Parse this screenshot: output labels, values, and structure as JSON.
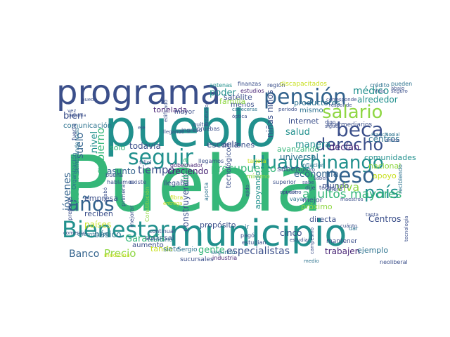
{
  "palette": {
    "navy": "#3b4f8a",
    "blue": "#33638d",
    "teal": "#21908d",
    "green": "#35b779",
    "lime": "#8fd744",
    "yellow": "#c8e020",
    "purple": "#482475",
    "steel": "#2c728e"
  },
  "words": [
    {
      "text": "Puebla",
      "color": "green"
    },
    {
      "text": "pueblo",
      "color": "teal"
    },
    {
      "text": "municipio",
      "color": "teal"
    },
    {
      "text": "programa",
      "color": "navy"
    },
    {
      "text": "Huauchinango",
      "color": "teal"
    },
    {
      "text": "pensión",
      "color": "blue"
    },
    {
      "text": "Bienestar",
      "color": "teal"
    },
    {
      "text": "salario",
      "color": "lime"
    },
    {
      "text": "beca",
      "color": "navy"
    },
    {
      "text": "seguir",
      "color": "teal"
    },
    {
      "text": "derecho",
      "color": "navy"
    },
    {
      "text": "peso",
      "color": "blue"
    },
    {
      "text": "años",
      "color": "blue"
    },
    {
      "text": "país",
      "color": "teal"
    },
    {
      "text": "adultos mayores",
      "color": "green"
    },
    {
      "text": "presupuesto",
      "color": "green"
    },
    {
      "text": "Banco",
      "color": "blue"
    },
    {
      "text": "Precio",
      "color": "lime"
    },
    {
      "text": "poder",
      "color": "teal"
    },
    {
      "text": "gobierno",
      "color": "green"
    },
    {
      "text": "hospitales",
      "color": "green"
    },
    {
      "text": "jóvenes",
      "color": "blue"
    },
    {
      "text": "médico",
      "color": "teal"
    },
    {
      "text": "bien",
      "color": "navy"
    },
    {
      "text": "tiempo",
      "color": "navy"
    },
    {
      "text": "viva",
      "color": "lime"
    },
    {
      "text": "salud",
      "color": "teal"
    },
    {
      "text": "suelo",
      "color": "blue"
    },
    {
      "text": "nivel",
      "color": "teal"
    },
    {
      "text": "escuela",
      "color": "navy"
    },
    {
      "text": "todavía",
      "color": "navy"
    },
    {
      "text": "tonelada",
      "color": "purple"
    },
    {
      "text": "economía",
      "color": "blue"
    },
    {
      "text": "mundo",
      "color": "navy"
    },
    {
      "text": "Garantía",
      "color": "green"
    },
    {
      "text": "especialistas",
      "color": "navy"
    },
    {
      "text": "satélite",
      "color": "navy"
    },
    {
      "text": "niñas niños",
      "color": "navy"
    },
    {
      "text": "construyendo",
      "color": "navy"
    },
    {
      "text": "creciendo",
      "color": "purple"
    },
    {
      "text": "pública",
      "color": "green"
    },
    {
      "text": "apoyando",
      "color": "teal"
    },
    {
      "text": "manera",
      "color": "teal"
    },
    {
      "text": "decían",
      "color": "purple"
    },
    {
      "text": "alrededor",
      "color": "teal"
    },
    {
      "text": "centros",
      "color": "steel"
    },
    {
      "text": "apoyo",
      "color": "yellow"
    },
    {
      "text": "universal",
      "color": "steel"
    },
    {
      "text": "internet",
      "color": "navy"
    },
    {
      "text": "comunidades",
      "color": "teal"
    },
    {
      "text": "avanzando",
      "color": "green"
    },
    {
      "text": "asunto",
      "color": "blue"
    },
    {
      "text": "sólo",
      "color": "green"
    },
    {
      "text": "empresa",
      "color": "navy"
    },
    {
      "text": "reciben",
      "color": "navy"
    },
    {
      "text": "básico",
      "color": "steel"
    },
    {
      "text": "aumento",
      "color": "navy"
    },
    {
      "text": "países",
      "color": "yellow"
    },
    {
      "text": "comunicación",
      "color": "steel"
    },
    {
      "text": "propósito",
      "color": "navy"
    },
    {
      "text": "gente",
      "color": "green"
    },
    {
      "text": "tanda",
      "color": "yellow"
    },
    {
      "text": "trabajen",
      "color": "purple"
    },
    {
      "text": "ejemplo",
      "color": "steel"
    },
    {
      "text": "cinco",
      "color": "navy"
    },
    {
      "text": "Centros",
      "color": "navy"
    },
    {
      "text": "próximo",
      "color": "lime"
    },
    {
      "text": "mejor",
      "color": "navy"
    },
    {
      "text": "saben",
      "color": "navy"
    },
    {
      "text": "productores",
      "color": "steel"
    },
    {
      "text": "nacional",
      "color": "lime"
    },
    {
      "text": "directa",
      "color": "navy"
    },
    {
      "text": "mismo",
      "color": "steel"
    },
    {
      "text": "menos",
      "color": "navy"
    },
    {
      "text": "familia",
      "color": "lime"
    },
    {
      "text": "millones",
      "color": "navy"
    },
    {
      "text": "tecnológico",
      "color": "navy"
    },
    {
      "text": "siete",
      "color": "steel"
    },
    {
      "text": "Sergio",
      "color": "steel"
    },
    {
      "text": "llegaba",
      "color": "navy"
    },
    {
      "text": "sucursal",
      "color": "navy"
    },
    {
      "text": "sucursales",
      "color": "navy"
    },
    {
      "text": "gobernador",
      "color": "purple"
    },
    {
      "text": "intermediarios",
      "color": "navy"
    },
    {
      "text": "mantener",
      "color": "navy"
    },
    {
      "text": "región",
      "color": "navy"
    },
    {
      "text": "estudios",
      "color": "purple"
    },
    {
      "text": "finanzas",
      "color": "navy"
    },
    {
      "text": "antenas",
      "color": "teal"
    },
    {
      "text": "discapacitados",
      "color": "yellow"
    },
    {
      "text": "crédito",
      "color": "steel"
    },
    {
      "text": "pueden",
      "color": "steel"
    },
    {
      "text": "abajo",
      "color": "navy"
    },
    {
      "text": "industria",
      "color": "purple"
    },
    {
      "text": "segundo",
      "color": "steel"
    },
    {
      "text": "medio",
      "color": "steel"
    },
    {
      "text": "neoliberal",
      "color": "navy"
    },
    {
      "text": "Vida",
      "color": "navy"
    },
    {
      "text": "Sembrando Vida",
      "color": "steel"
    },
    {
      "text": "Organización",
      "color": "steel"
    },
    {
      "text": "hablamos",
      "color": "navy"
    },
    {
      "text": "existe",
      "color": "navy"
    },
    {
      "text": "mayor",
      "color": "navy"
    },
    {
      "text": "pruebas",
      "color": "navy"
    },
    {
      "text": "quitar",
      "color": "navy"
    },
    {
      "text": "mínimo",
      "color": "lime"
    },
    {
      "text": "frijol",
      "color": "navy"
    },
    {
      "text": "buena",
      "color": "navy"
    },
    {
      "text": "enero",
      "color": "navy"
    },
    {
      "text": "cuadro",
      "color": "navy"
    },
    {
      "text": "dije",
      "color": "navy"
    },
    {
      "text": "todas",
      "color": "navy"
    },
    {
      "text": "inflación",
      "color": "steel"
    },
    {
      "text": "superior",
      "color": "navy"
    },
    {
      "text": "vayan",
      "color": "steel"
    },
    {
      "text": "estudian",
      "color": "navy"
    },
    {
      "text": "pagó",
      "color": "navy"
    },
    {
      "text": "ir",
      "color": "steel"
    },
    {
      "text": "ingreso",
      "color": "navy"
    },
    {
      "text": "fuerte",
      "color": "navy"
    },
    {
      "text": "medicina",
      "color": "yellow"
    },
    {
      "text": "encontrando",
      "color": "steel"
    },
    {
      "text": "comercio",
      "color": "navy"
    },
    {
      "text": "pretexto",
      "color": "navy"
    },
    {
      "text": "mejorar",
      "color": "navy"
    },
    {
      "text": "primera",
      "color": "navy"
    },
    {
      "text": "territorio",
      "color": "steel"
    },
    {
      "text": "continuar",
      "color": "navy"
    },
    {
      "text": "Constitución",
      "color": "lime"
    },
    {
      "text": "aporta",
      "color": "steel"
    },
    {
      "text": "seguro",
      "color": "navy"
    },
    {
      "text": "tecnología",
      "color": "navy"
    },
    {
      "text": "recibiendo",
      "color": "steel"
    },
    {
      "text": "estudiar",
      "color": "navy"
    },
    {
      "text": "campesino",
      "color": "navy"
    },
    {
      "text": "dar",
      "color": "steel"
    },
    {
      "text": "producto",
      "color": "navy"
    },
    {
      "text": "óptica",
      "color": "navy"
    },
    {
      "text": "cabeceras",
      "color": "steel"
    },
    {
      "text": "periodo",
      "color": "navy"
    },
    {
      "text": "corresponde",
      "color": "navy"
    },
    {
      "text": "responde",
      "color": "navy"
    },
    {
      "text": "digo",
      "color": "navy"
    },
    {
      "text": "sigue",
      "color": "navy"
    },
    {
      "text": "Francisco",
      "color": "steel"
    },
    {
      "text": "Social",
      "color": "steel"
    },
    {
      "text": "arriba",
      "color": "navy"
    },
    {
      "text": "vez",
      "color": "navy"
    },
    {
      "text": "pequeña",
      "color": "navy"
    },
    {
      "text": "puedo",
      "color": "navy"
    },
    {
      "text": "eje",
      "color": "navy"
    },
    {
      "text": "fibra",
      "color": "yellow"
    },
    {
      "text": "entrega",
      "color": "yellow"
    },
    {
      "text": "llegamos",
      "color": "navy"
    },
    {
      "text": "tarjeta",
      "color": "yellow"
    },
    {
      "text": "acabó",
      "color": "navy"
    },
    {
      "text": "opinión",
      "color": "navy"
    },
    {
      "text": "nuestro",
      "color": "navy"
    },
    {
      "text": "saben",
      "color": "navy"
    },
    {
      "text": "sabe",
      "color": "navy"
    },
    {
      "text": "cuánto",
      "color": "navy"
    },
    {
      "text": "tanta",
      "color": "navy"
    },
    {
      "text": "maestros",
      "color": "navy"
    },
    {
      "text": "ejido",
      "color": "navy"
    },
    {
      "text": "llegando",
      "color": "navy"
    },
    {
      "text": "edificado",
      "color": "navy"
    }
  ]
}
